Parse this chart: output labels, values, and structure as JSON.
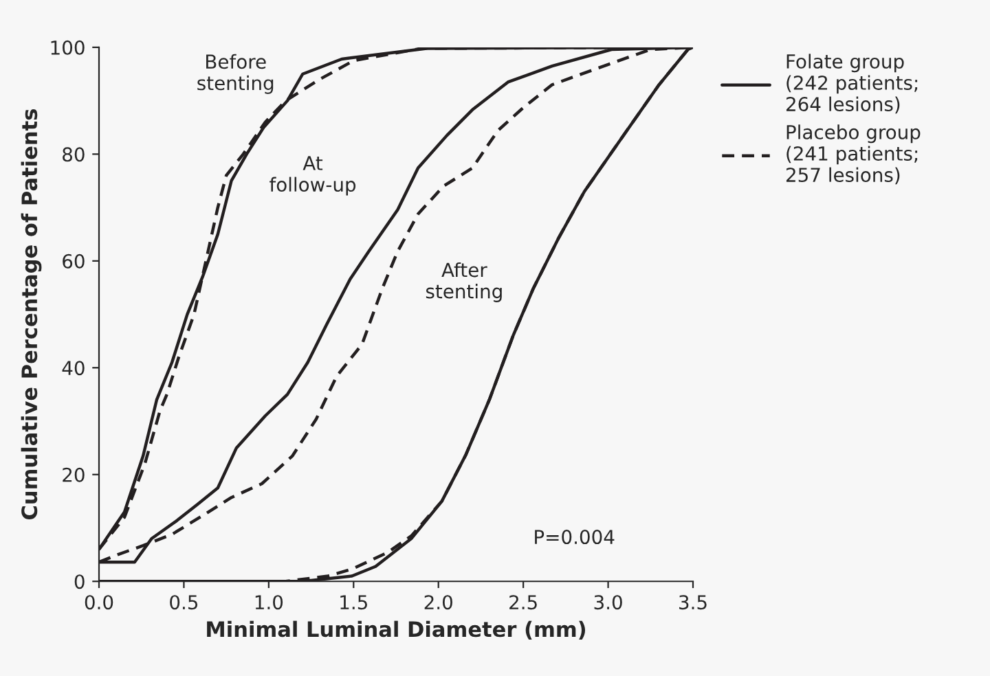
{
  "chart_data": {
    "type": "line",
    "xlabel": "Minimal Luminal Diameter (mm)",
    "ylabel": "Cumulative Percentage of Patients",
    "xlim": [
      0,
      3.5
    ],
    "ylim": [
      0,
      100
    ],
    "xticks": [
      {
        "value": 0,
        "label": "0.0"
      },
      {
        "value": 0.5,
        "label": "0.5"
      },
      {
        "value": 1,
        "label": "1.0"
      },
      {
        "value": 1.5,
        "label": "1.5"
      },
      {
        "value": 2,
        "label": "2.0"
      },
      {
        "value": 2.5,
        "label": "2.5"
      },
      {
        "value": 3,
        "label": "3.0"
      },
      {
        "value": 3.5,
        "label": "3.5"
      }
    ],
    "yticks": [
      0,
      20,
      40,
      60,
      80,
      100
    ],
    "grid": false,
    "legend": "right",
    "marker": "none",
    "series": [
      {
        "name": "Folate group\n(242 patients;\n264 lesions)",
        "color": "#231f20",
        "line_style": "solid",
        "x": [
          0,
          0.15,
          0.26,
          0.34,
          0.43,
          0.52,
          0.61,
          0.7,
          0.78,
          0.87,
          0.97,
          1.11,
          1.2,
          1.43,
          1.93,
          3.5
        ],
        "values": [
          6,
          13,
          23.5,
          34,
          41,
          50,
          57,
          65,
          75,
          80,
          85,
          90,
          95,
          97.8,
          99.8,
          100
        ]
      },
      {
        "name": "Placebo group\n(241 patients;\n257 lesions)",
        "color": "#231f20",
        "line_style": "dashed",
        "x": [
          0,
          0.15,
          0.27,
          0.36,
          0.4,
          0.47,
          0.56,
          0.63,
          0.7,
          0.75,
          0.85,
          0.98,
          1.1,
          1.3,
          1.5,
          1.9,
          3.5
        ],
        "values": [
          6,
          12,
          22,
          32,
          35,
          42,
          50,
          60,
          70,
          76,
          80,
          86,
          90,
          94,
          97.5,
          99.8,
          100
        ]
      },
      {
        "color": "#231f20",
        "line_style": "solid",
        "x": [
          0,
          0.21,
          0.31,
          0.46,
          0.58,
          0.7,
          0.81,
          0.98,
          1.11,
          1.23,
          1.34,
          1.48,
          1.59,
          1.76,
          1.88,
          2.05,
          2.2,
          2.41,
          2.67,
          3.02,
          3.5
        ],
        "values": [
          3.6,
          3.6,
          8,
          11.4,
          14.4,
          17.5,
          25,
          31,
          35,
          41,
          48,
          56.6,
          61.8,
          69.6,
          77.4,
          83.5,
          88.3,
          93.5,
          96.5,
          99.6,
          100
        ]
      },
      {
        "color": "#231f20",
        "line_style": "dashed",
        "x": [
          0,
          0.11,
          0.26,
          0.43,
          0.61,
          0.78,
          0.96,
          1.14,
          1.28,
          1.4,
          1.55,
          1.67,
          1.76,
          1.88,
          2.03,
          2.2,
          2.35,
          2.5,
          2.67,
          2.93,
          3.25,
          3.5
        ],
        "values": [
          3.6,
          5,
          6.7,
          8.8,
          12.3,
          15.7,
          18.3,
          23.5,
          30.4,
          38.4,
          44.4,
          54.9,
          61.8,
          68.8,
          74,
          77.4,
          84.4,
          88.7,
          93,
          96,
          99.6,
          100
        ]
      },
      {
        "color": "#231f20",
        "line_style": "solid",
        "x": [
          0,
          1.2,
          1.49,
          1.63,
          1.84,
          2.02,
          2.16,
          2.3,
          2.44,
          2.56,
          2.71,
          2.86,
          3.09,
          3.3,
          3.47,
          3.5
        ],
        "values": [
          0,
          0,
          1,
          2.8,
          8,
          15,
          23.6,
          34,
          46,
          54.9,
          64.4,
          73,
          83.5,
          93,
          99.6,
          100
        ]
      },
      {
        "color": "#231f20",
        "line_style": "dashed",
        "x": [
          0,
          1.1,
          1.35,
          1.49,
          1.7,
          1.84,
          2.02,
          2.16,
          2.3,
          2.44,
          2.56,
          2.71,
          2.86,
          3.09,
          3.3,
          3.47,
          3.5
        ],
        "values": [
          0,
          0,
          1,
          2.3,
          5.4,
          8.5,
          15,
          23.6,
          34,
          46,
          54.9,
          64.4,
          73,
          83.5,
          93,
          99.6,
          100
        ]
      }
    ],
    "annotations": [
      "Before\nstenting",
      "At\nfollow-up",
      "After\nstenting",
      "P=0.004"
    ]
  }
}
